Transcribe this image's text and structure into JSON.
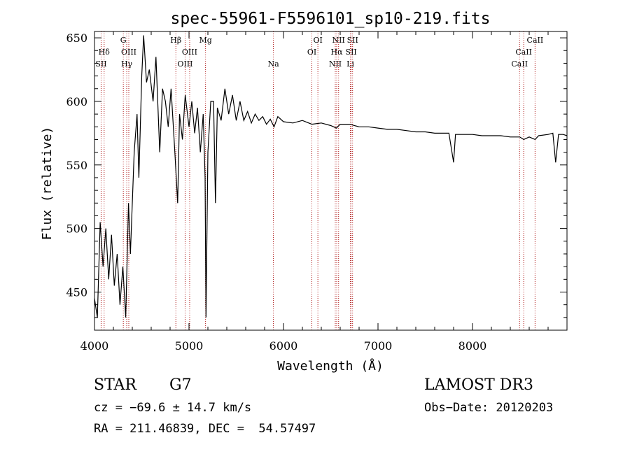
{
  "chart_data": {
    "type": "line",
    "title": "spec-55961-F5596101_sp10-219.fits",
    "xlabel": "Wavelength (Å)",
    "ylabel": "Flux (relative)",
    "xlim": [
      4000,
      9000
    ],
    "ylim": [
      420,
      655
    ],
    "x_ticks": [
      4000,
      5000,
      6000,
      7000,
      8000
    ],
    "x_tick_labels": [
      "4000",
      "5000",
      "6000",
      "7000",
      "8000"
    ],
    "y_ticks": [
      450,
      500,
      550,
      600,
      650
    ],
    "y_tick_labels": [
      "450",
      "500",
      "550",
      "600",
      "650"
    ],
    "series": [
      {
        "name": "flux",
        "color": "#000000",
        "points": [
          [
            4000,
            445
          ],
          [
            4030,
            430
          ],
          [
            4060,
            505
          ],
          [
            4090,
            470
          ],
          [
            4120,
            500
          ],
          [
            4150,
            460
          ],
          [
            4180,
            495
          ],
          [
            4210,
            455
          ],
          [
            4240,
            480
          ],
          [
            4270,
            440
          ],
          [
            4300,
            470
          ],
          [
            4330,
            430
          ],
          [
            4360,
            520
          ],
          [
            4380,
            480
          ],
          [
            4420,
            560
          ],
          [
            4450,
            590
          ],
          [
            4470,
            540
          ],
          [
            4500,
            620
          ],
          [
            4520,
            652
          ],
          [
            4550,
            615
          ],
          [
            4580,
            625
          ],
          [
            4620,
            600
          ],
          [
            4650,
            635
          ],
          [
            4690,
            560
          ],
          [
            4720,
            610
          ],
          [
            4750,
            600
          ],
          [
            4780,
            580
          ],
          [
            4810,
            610
          ],
          [
            4850,
            560
          ],
          [
            4880,
            520
          ],
          [
            4900,
            590
          ],
          [
            4930,
            570
          ],
          [
            4960,
            605
          ],
          [
            5000,
            580
          ],
          [
            5030,
            600
          ],
          [
            5060,
            575
          ],
          [
            5090,
            595
          ],
          [
            5120,
            560
          ],
          [
            5150,
            590
          ],
          [
            5170,
            540
          ],
          [
            5180,
            430
          ],
          [
            5200,
            560
          ],
          [
            5230,
            600
          ],
          [
            5260,
            600
          ],
          [
            5280,
            520
          ],
          [
            5300,
            595
          ],
          [
            5340,
            585
          ],
          [
            5380,
            610
          ],
          [
            5420,
            590
          ],
          [
            5460,
            605
          ],
          [
            5500,
            585
          ],
          [
            5540,
            600
          ],
          [
            5580,
            585
          ],
          [
            5620,
            592
          ],
          [
            5660,
            583
          ],
          [
            5700,
            590
          ],
          [
            5740,
            585
          ],
          [
            5780,
            588
          ],
          [
            5820,
            582
          ],
          [
            5860,
            586
          ],
          [
            5900,
            580
          ],
          [
            5940,
            588
          ],
          [
            6000,
            584
          ],
          [
            6100,
            583
          ],
          [
            6200,
            585
          ],
          [
            6300,
            582
          ],
          [
            6400,
            583
          ],
          [
            6500,
            581
          ],
          [
            6560,
            579
          ],
          [
            6600,
            582
          ],
          [
            6700,
            582
          ],
          [
            6800,
            580
          ],
          [
            6900,
            580
          ],
          [
            7000,
            579
          ],
          [
            7100,
            578
          ],
          [
            7200,
            578
          ],
          [
            7300,
            577
          ],
          [
            7400,
            576
          ],
          [
            7500,
            576
          ],
          [
            7600,
            575
          ],
          [
            7700,
            575
          ],
          [
            7750,
            575
          ],
          [
            7800,
            552
          ],
          [
            7820,
            574
          ],
          [
            7900,
            574
          ],
          [
            8000,
            574
          ],
          [
            8100,
            573
          ],
          [
            8200,
            573
          ],
          [
            8300,
            573
          ],
          [
            8400,
            572
          ],
          [
            8500,
            572
          ],
          [
            8542,
            570
          ],
          [
            8600,
            572
          ],
          [
            8662,
            570
          ],
          [
            8700,
            573
          ],
          [
            8800,
            574
          ],
          [
            8850,
            575
          ],
          [
            8880,
            552
          ],
          [
            8910,
            574
          ],
          [
            8960,
            574
          ],
          [
            9000,
            573
          ]
        ]
      }
    ],
    "line_markers": [
      {
        "label": "Hδ",
        "x": 4102,
        "row": 2
      },
      {
        "label": "SII",
        "x": 4070,
        "row": 3
      },
      {
        "label": "G",
        "x": 4305,
        "row": 1
      },
      {
        "label": "OIII",
        "x": 4363,
        "row": 2
      },
      {
        "label": "Hγ",
        "x": 4341,
        "row": 3
      },
      {
        "label": "Hβ",
        "x": 4861,
        "row": 1
      },
      {
        "label": "OIII",
        "x": 5007,
        "row": 2
      },
      {
        "label": "OIII",
        "x": 4959,
        "row": 3
      },
      {
        "label": "Mg",
        "x": 5175,
        "row": 1
      },
      {
        "label": "Na",
        "x": 5893,
        "row": 3
      },
      {
        "label": "OI",
        "x": 6364,
        "row": 1
      },
      {
        "label": "OI",
        "x": 6300,
        "row": 2
      },
      {
        "label": "NII",
        "x": 6583,
        "row": 1
      },
      {
        "label": "Hα",
        "x": 6563,
        "row": 2
      },
      {
        "label": "NII",
        "x": 6548,
        "row": 3
      },
      {
        "label": "SII",
        "x": 6731,
        "row": 1
      },
      {
        "label": "SII",
        "x": 6716,
        "row": 2
      },
      {
        "label": "Li",
        "x": 6708,
        "row": 3
      },
      {
        "label": "CaII",
        "x": 8662,
        "row": 1
      },
      {
        "label": "CaII",
        "x": 8542,
        "row": 2
      },
      {
        "label": "CaII",
        "x": 8498,
        "row": 3
      }
    ],
    "marker_color": "#b22222"
  },
  "info": {
    "object_class": "STAR",
    "subclass": "G7",
    "survey": "LAMOST DR3",
    "cz": "cz = −69.6 ± 14.7 km/s",
    "obs_date": "Obs−Date: 20120203",
    "coords": "RA = 211.46839, DEC =  54.57497"
  }
}
